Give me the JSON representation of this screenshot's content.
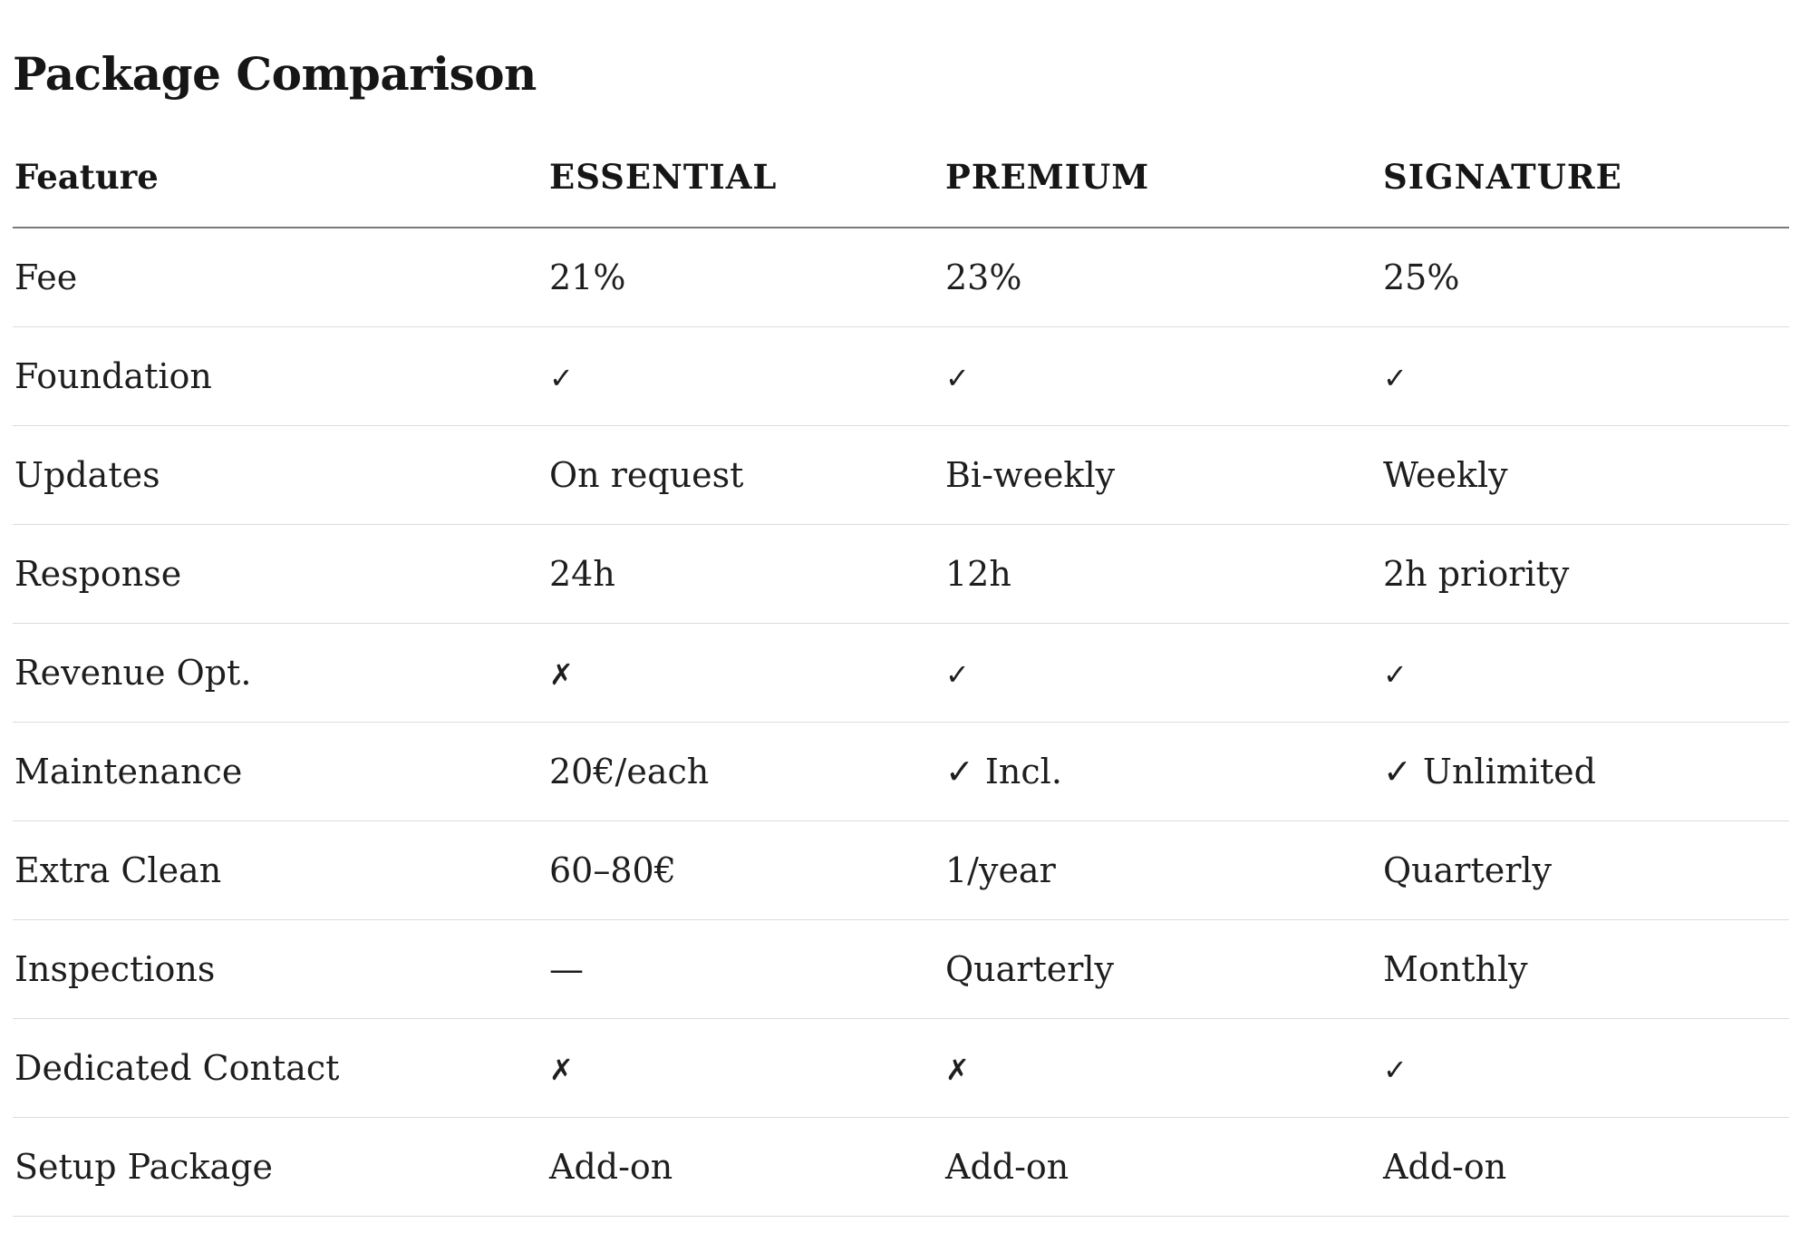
{
  "title": "Package Comparison",
  "table": {
    "headers": [
      "Feature",
      "ESSENTIAL",
      "PREMIUM",
      "SIGNATURE"
    ],
    "rows": [
      [
        "Fee",
        "21%",
        "23%",
        "25%"
      ],
      [
        "Foundation",
        "✓",
        "✓",
        "✓"
      ],
      [
        "Updates",
        "On request",
        "Bi-weekly",
        "Weekly"
      ],
      [
        "Response",
        "24h",
        "12h",
        "2h priority"
      ],
      [
        "Revenue Opt.",
        "✗",
        "✓",
        "✓"
      ],
      [
        "Maintenance",
        "20€/each",
        "✓ Incl.",
        "✓ Unlimited"
      ],
      [
        "Extra Clean",
        "60–80€",
        "1/year",
        "Quarterly"
      ],
      [
        "Inspections",
        "—",
        "Quarterly",
        "Monthly"
      ],
      [
        "Dedicated Contact",
        "✗",
        "✗",
        "✓"
      ],
      [
        "Setup Package",
        "Add-on",
        "Add-on",
        "Add-on"
      ]
    ]
  }
}
